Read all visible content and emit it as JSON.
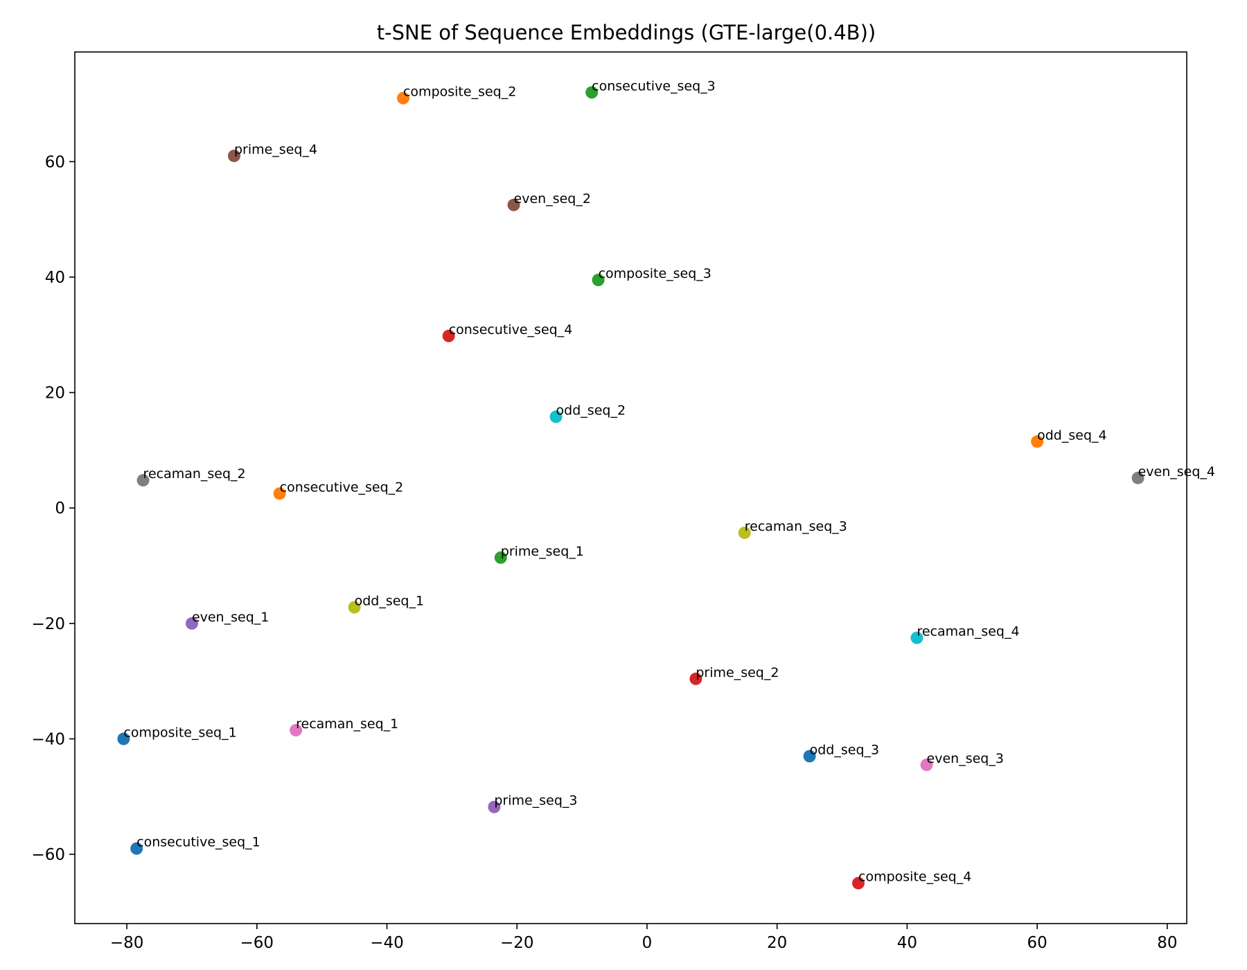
{
  "chart_data": {
    "type": "scatter",
    "title": "t-SNE of Sequence Embeddings (GTE-large(0.4B))",
    "xlabel": "",
    "ylabel": "",
    "xlim": [
      -88,
      83
    ],
    "ylim": [
      -72,
      79
    ],
    "xticks": [
      -80,
      -60,
      -40,
      -20,
      0,
      20,
      40,
      60,
      80
    ],
    "yticks": [
      -60,
      -40,
      -20,
      0,
      20,
      40,
      60
    ],
    "xtick_labels": [
      "−80",
      "−60",
      "−40",
      "−20",
      "0",
      "20",
      "40",
      "60",
      "80"
    ],
    "ytick_labels": [
      "−60",
      "−40",
      "−20",
      "0",
      "20",
      "40",
      "60"
    ],
    "grid": false,
    "legend": "none",
    "points": [
      {
        "label": "composite_seq_2",
        "x": -37.5,
        "y": 71.0,
        "color": "#ff7f0e"
      },
      {
        "label": "consecutive_seq_3",
        "x": -8.5,
        "y": 72.0,
        "color": "#2ca02c"
      },
      {
        "label": "prime_seq_4",
        "x": -63.5,
        "y": 61.0,
        "color": "#8c564b"
      },
      {
        "label": "even_seq_2",
        "x": -20.5,
        "y": 52.5,
        "color": "#8c564b"
      },
      {
        "label": "composite_seq_3",
        "x": -7.5,
        "y": 39.5,
        "color": "#2ca02c"
      },
      {
        "label": "consecutive_seq_4",
        "x": -30.5,
        "y": 29.8,
        "color": "#d62728"
      },
      {
        "label": "odd_seq_2",
        "x": -14.0,
        "y": 15.8,
        "color": "#17becf"
      },
      {
        "label": "odd_seq_4",
        "x": 60.0,
        "y": 11.5,
        "color": "#ff7f0e"
      },
      {
        "label": "even_seq_4",
        "x": 75.5,
        "y": 5.2,
        "color": "#7f7f7f"
      },
      {
        "label": "recaman_seq_2",
        "x": -77.5,
        "y": 4.8,
        "color": "#7f7f7f"
      },
      {
        "label": "consecutive_seq_2",
        "x": -56.5,
        "y": 2.5,
        "color": "#ff7f0e"
      },
      {
        "label": "recaman_seq_3",
        "x": 15.0,
        "y": -4.3,
        "color": "#bcbd22"
      },
      {
        "label": "prime_seq_1",
        "x": -22.5,
        "y": -8.6,
        "color": "#2ca02c"
      },
      {
        "label": "odd_seq_1",
        "x": -45.0,
        "y": -17.2,
        "color": "#bcbd22"
      },
      {
        "label": "even_seq_1",
        "x": -70.0,
        "y": -20.0,
        "color": "#9467bd"
      },
      {
        "label": "recaman_seq_4",
        "x": 41.5,
        "y": -22.5,
        "color": "#17becf"
      },
      {
        "label": "prime_seq_2",
        "x": 7.5,
        "y": -29.6,
        "color": "#d62728"
      },
      {
        "label": "recaman_seq_1",
        "x": -54.0,
        "y": -38.5,
        "color": "#e377c2"
      },
      {
        "label": "composite_seq_1",
        "x": -80.5,
        "y": -40.0,
        "color": "#1f77b4"
      },
      {
        "label": "odd_seq_3",
        "x": 25.0,
        "y": -43.0,
        "color": "#1f77b4"
      },
      {
        "label": "even_seq_3",
        "x": 43.0,
        "y": -44.5,
        "color": "#e377c2"
      },
      {
        "label": "prime_seq_3",
        "x": -23.5,
        "y": -51.8,
        "color": "#9467bd"
      },
      {
        "label": "consecutive_seq_1",
        "x": -78.5,
        "y": -59.0,
        "color": "#1f77b4"
      },
      {
        "label": "composite_seq_4",
        "x": 32.5,
        "y": -65.0,
        "color": "#d62728"
      }
    ]
  }
}
